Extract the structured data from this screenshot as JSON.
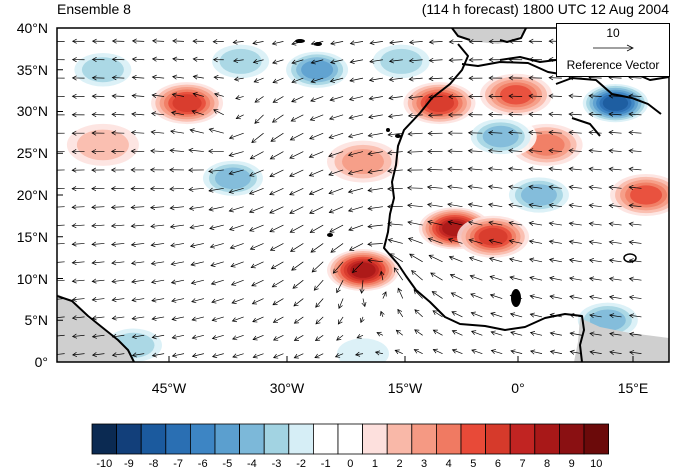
{
  "titles": {
    "left": "Ensemble 8",
    "right": "(114 h forecast) 1800 UTC 12 Aug 2004"
  },
  "reference_vector": {
    "magnitude": "10",
    "label": "Reference Vector"
  },
  "axes": {
    "y_ticks": [
      "40°N",
      "35°N",
      "30°N",
      "25°N",
      "20°N",
      "15°N",
      "10°N",
      "5°N",
      "0°"
    ],
    "x_ticks": [
      "45°W",
      "30°W",
      "15°W",
      "0°",
      "15°E"
    ]
  },
  "colorbar": {
    "labels": [
      "-10",
      "-9",
      "-8",
      "-7",
      "-6",
      "-5",
      "-4",
      "-3",
      "-2",
      "-1",
      "0",
      "1",
      "2",
      "3",
      "4",
      "5",
      "6",
      "7",
      "8",
      "9",
      "10"
    ],
    "colors": [
      "#0b2a52",
      "#123f7a",
      "#1b5a9e",
      "#2a6fb3",
      "#3d85c4",
      "#5b9fcf",
      "#7cb8d9",
      "#a2d3e2",
      "#d6eef6",
      "#ffffff",
      "#ffffff",
      "#fde0dd",
      "#f9b8a8",
      "#f59983",
      "#f07a62",
      "#e84a38",
      "#d63a2b",
      "#c12422",
      "#a81818",
      "#8a1012",
      "#6b0a0a"
    ]
  },
  "anomaly_blobs": [
    {
      "lon": -43,
      "lat": 31,
      "value": 6
    },
    {
      "lon": -20,
      "lat": 11,
      "value": 8
    },
    {
      "lon": -8,
      "lat": 16,
      "value": 8
    },
    {
      "lon": -3,
      "lat": 15,
      "value": 6
    },
    {
      "lon": -10,
      "lat": 31,
      "value": 6
    },
    {
      "lon": 0,
      "lat": 32,
      "value": 5
    },
    {
      "lon": 4,
      "lat": 26,
      "value": 4
    },
    {
      "lon": 17,
      "lat": 20,
      "value": 5
    },
    {
      "lon": -20,
      "lat": 24,
      "value": 3
    },
    {
      "lon": -54,
      "lat": 26,
      "value": 2
    },
    {
      "lon": 13,
      "lat": 31,
      "value": -8
    },
    {
      "lon": 3,
      "lat": 20,
      "value": -4
    },
    {
      "lon": 12,
      "lat": 5,
      "value": -4
    },
    {
      "lon": -37,
      "lat": 22,
      "value": -4
    },
    {
      "lon": -26,
      "lat": 35,
      "value": -5
    },
    {
      "lon": -54,
      "lat": 35,
      "value": -3
    },
    {
      "lon": -36,
      "lat": 36,
      "value": -3
    },
    {
      "lon": -15,
      "lat": 36,
      "value": -3
    },
    {
      "lon": -2,
      "lat": 27,
      "value": -4
    },
    {
      "lon": -50,
      "lat": 2,
      "value": -3
    },
    {
      "lon": -20,
      "lat": 1,
      "value": -2
    }
  ],
  "wind_field": {
    "centers": [
      {
        "lon": -18,
        "lat": 11,
        "strength": 1.2
      },
      {
        "lon": -36,
        "lat": 28,
        "strength": -0.6
      }
    ],
    "background": {
      "u": -7,
      "v": 0
    }
  }
}
